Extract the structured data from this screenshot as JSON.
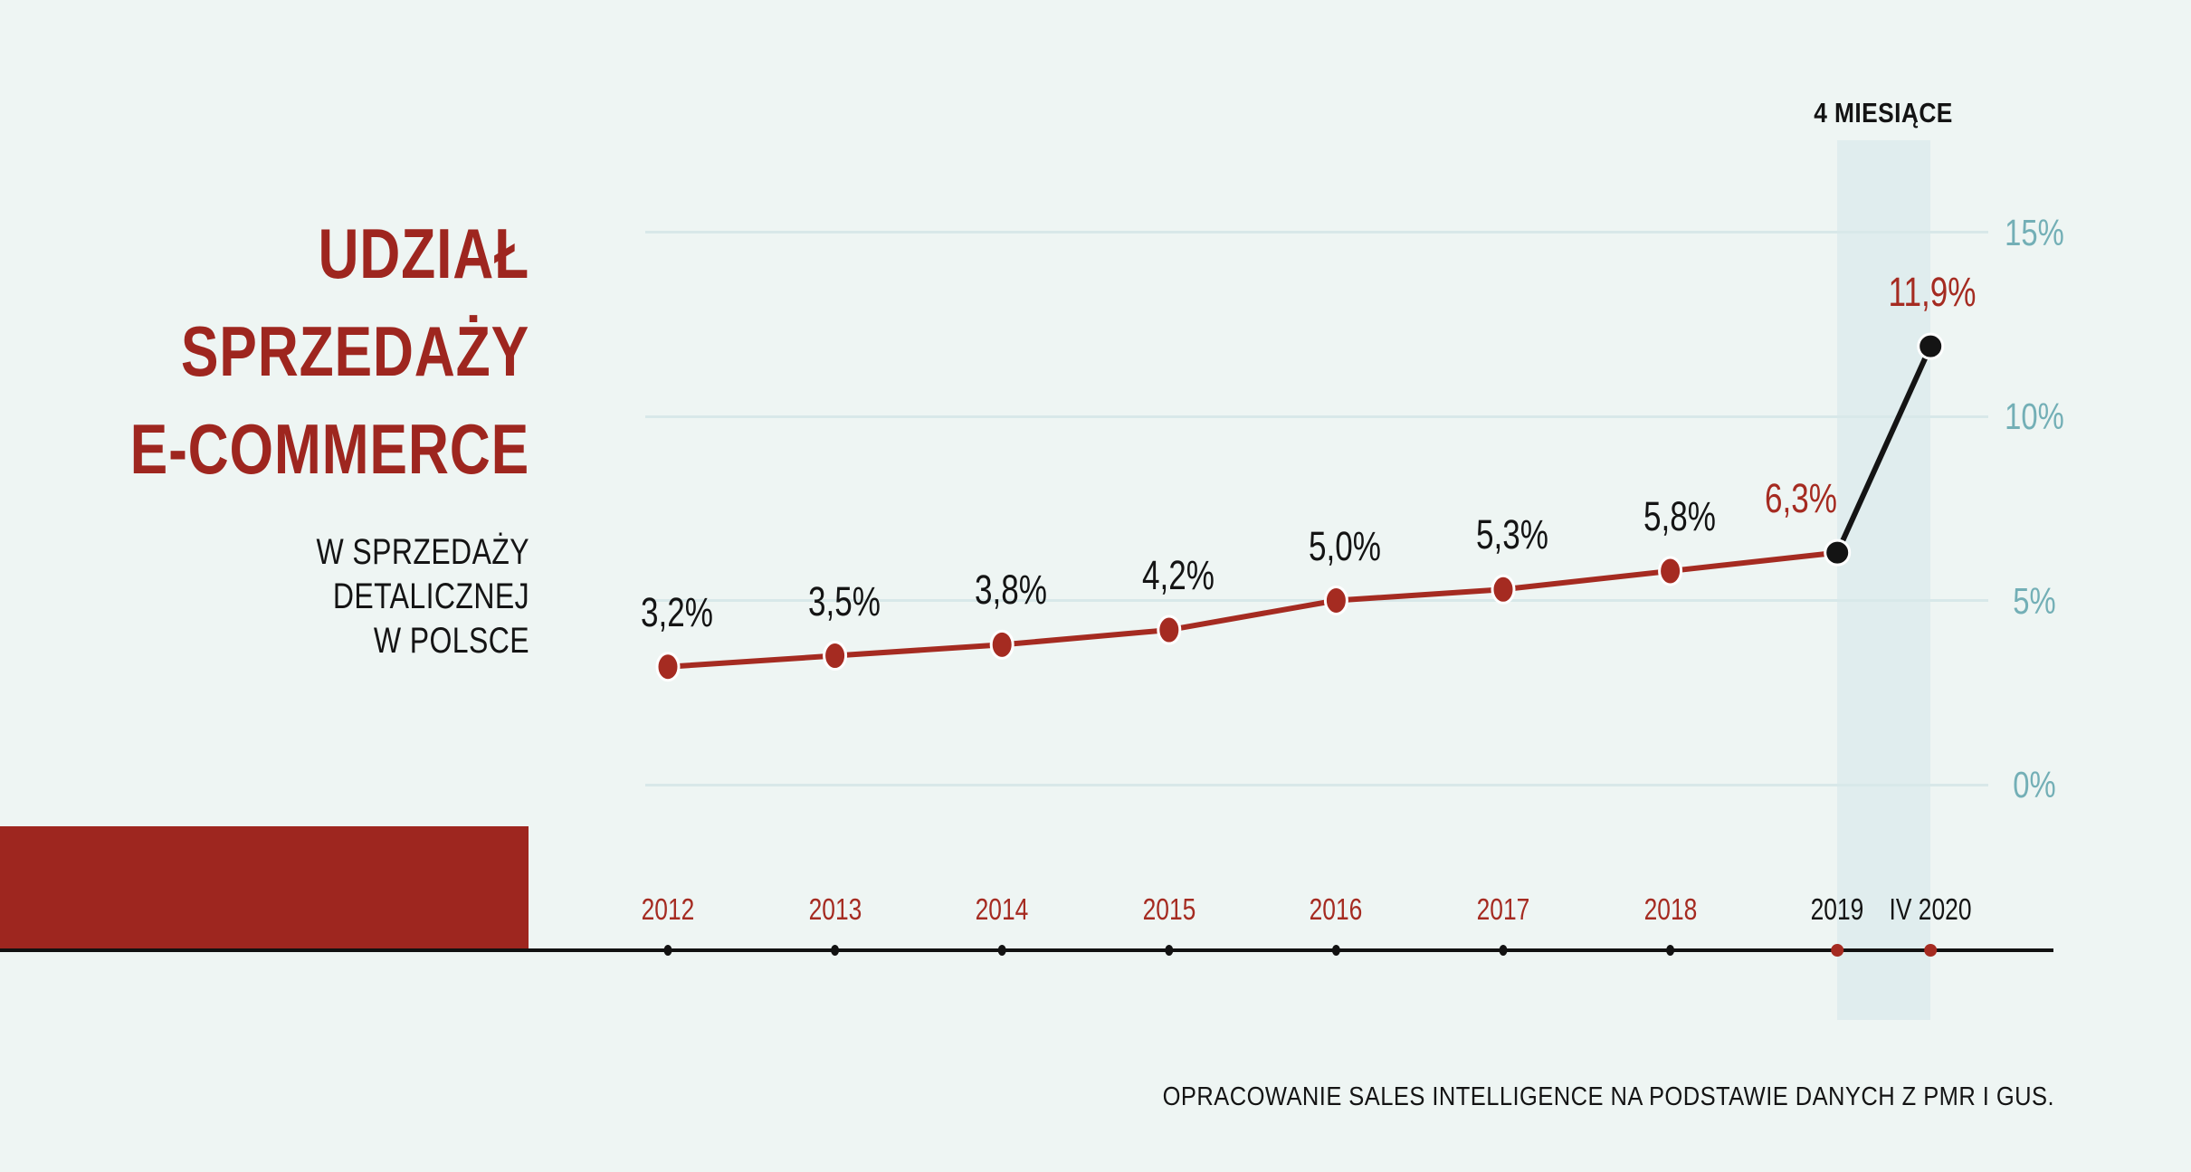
{
  "palette": {
    "background": "#EEF5F3",
    "accent_red": "#9E261F",
    "series_red": "#A52B21",
    "black": "#141414",
    "teal": "#73AFB6",
    "grid": "#D8E8E9",
    "band": "#E0EDEE",
    "white": "#FFFFFF"
  },
  "title": {
    "lines": [
      "UDZIAŁ",
      "SPRZEDAŻY",
      "E-COMMERCE"
    ]
  },
  "subtitle": {
    "lines": [
      "W SPRZEDAŻY",
      "DETALICZNEJ",
      "W POLSCE"
    ]
  },
  "source": {
    "text": "OPRACOWANIE SALES INTELLIGENCE NA PODSTAWIE DANYCH Z PMR I GUS."
  },
  "chart_data": {
    "type": "line",
    "title": "UDZIAŁ SPRZEDAŻY E-COMMERCE",
    "subtitle": "W SPRZEDAŻY DETALICZNEJ W POLSCE",
    "categories": [
      "2012",
      "2013",
      "2014",
      "2015",
      "2016",
      "2017",
      "2018",
      "2019",
      "IV 2020"
    ],
    "series": [
      {
        "name": "Udział sprzedaży e-commerce w sprzedaży detalicznej",
        "values": [
          3.2,
          3.5,
          3.8,
          4.2,
          5.0,
          5.3,
          5.8,
          6.3,
          11.9
        ]
      }
    ],
    "point_labels": [
      "3,2%",
      "3,5%",
      "3,8%",
      "4,2%",
      "5,0%",
      "5,3%",
      "5,8%",
      "6,3%",
      "11,9%"
    ],
    "highlighted_categories": [
      "2019",
      "IV 2020"
    ],
    "y_ticks": [
      {
        "value": 0,
        "label": "0%"
      },
      {
        "value": 5,
        "label": "5%"
      },
      {
        "value": 10,
        "label": "10%"
      },
      {
        "value": 15,
        "label": "15%"
      }
    ],
    "ylim": [
      0,
      15
    ],
    "grid": true,
    "legend": "none",
    "annotation_span": {
      "from": "2019",
      "to": "IV 2020",
      "label": "4 MIESIĄCE"
    }
  }
}
